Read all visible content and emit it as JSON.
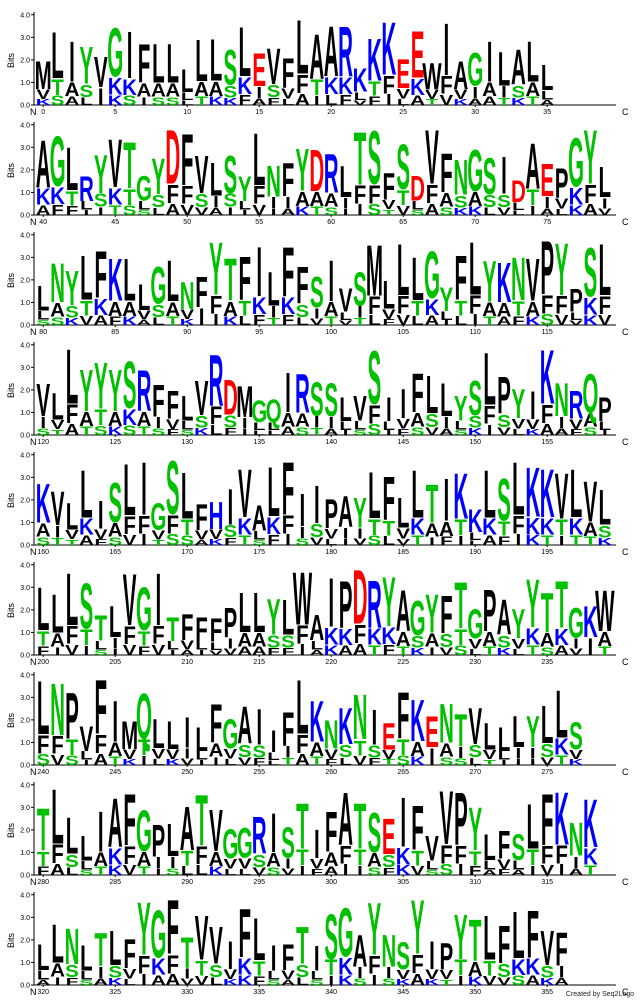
{
  "logo": {
    "y_axis_label": "Bits",
    "y_ticks": [
      "0.0",
      "1.0",
      "2.0",
      "3.0",
      "4.0"
    ],
    "n_label": "N",
    "c_label": "C",
    "credit": "Created by Seq2Logo"
  },
  "colors": {
    "hydrophobic": "#000000",
    "polar": "#00c000",
    "basic": "#0000ff",
    "acidic": "#ff0000",
    "other": "#000000"
  },
  "chart_data": {
    "type": "sequence-logo",
    "ylabel": "Bits",
    "ylim": [
      0,
      4.3
    ],
    "rows": [
      {
        "start": 0,
        "ticks": [
          0,
          5,
          10,
          15,
          20,
          25,
          30,
          35
        ],
        "consensus": "MLIYVGIFLLLLLSLEVFLAARKKKEEWIAGILALL"
      },
      {
        "start": 40,
        "ticks": [
          40,
          45,
          50,
          55,
          60,
          65,
          70,
          75
        ],
        "consensus": "AGLRYVTGYDFVLSYLNFYDRLTSFSDVFNGSIDAEPGYLF"
      },
      {
        "start": 80,
        "ticks": [
          80,
          85,
          90,
          95,
          100,
          105,
          110,
          115
        ],
        "consensus": "LNYLFKLLGLNFYTFILFFSIVSMLLLGYFLYKNVPYPSL"
      },
      {
        "start": 120,
        "ticks": [
          120,
          125,
          130,
          135,
          140,
          145,
          150,
          155
        ],
        "consensus": "VLLYYYSRFFLVRDMGQIRSSLVSIIFLLYSLPYIKNRQPF"
      },
      {
        "start": 160,
        "ticks": [
          160,
          165,
          170,
          175,
          180,
          185,
          190,
          195
        ],
        "consensus": "KVLLISLIGSLFHIVALFIIPAYLFLLTIKKLSLKKVLVL"
      },
      {
        "start": 200,
        "ticks": [
          200,
          205,
          210,
          215,
          220,
          225,
          230,
          235
        ],
        "consensus": "LLLSTLVGITFFFPLLYLWAIPDRYAGYFTGPAYYTTGKWI"
      },
      {
        "start": 240,
        "ticks": [
          240,
          245,
          250,
          255,
          260,
          265,
          270,
          275
        ],
        "consensus": "LNPVFIMQLLILFGAIIFLKNKNIEFKENTVLLLYLLS"
      },
      {
        "start": 280,
        "ticks": [
          280,
          285,
          290,
          295,
          300,
          305,
          310,
          315
        ],
        "consensus": "TLLLIAFGPLATVGGRISTIFATSEIFVVPYLFSLFKNK"
      },
      {
        "start": 320,
        "ticks": [
          320,
          325,
          330,
          335,
          340,
          345,
          350,
          355
        ],
        "consensus": "LLNLTLFYGFTVVIFLIFTISGAYNSYIPYTLFLFVF"
      }
    ]
  }
}
